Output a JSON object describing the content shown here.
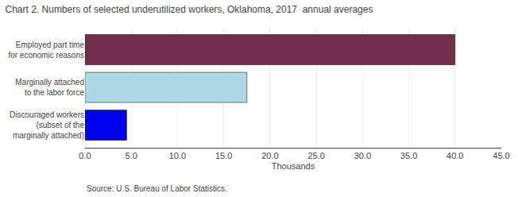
{
  "chart_data": {
    "type": "bar",
    "orientation": "horizontal",
    "title": "Chart 2. Numbers of selected underutilized workers, Oklahoma, 2017  annual averages",
    "categories": [
      "Discouraged workers\n(subset of the\nmarginally attached)",
      "Marginally attached\nto the labor force",
      "Employed part time\nfor economic reasons"
    ],
    "values": [
      4.5,
      17.5,
      40.0
    ],
    "colors": [
      "#0000EE",
      "#ADD8E6",
      "#722F4B"
    ],
    "xlabel": "Thousands",
    "xlim": [
      0,
      45
    ],
    "xticks": [
      {
        "value": 0,
        "label": "0.0"
      },
      {
        "value": 5,
        "label": "5.0"
      },
      {
        "value": 10,
        "label": "10.0"
      },
      {
        "value": 15,
        "label": "15.0"
      },
      {
        "value": 20,
        "label": "20.0"
      },
      {
        "value": 25,
        "label": "25.0"
      },
      {
        "value": 30,
        "label": "30.0"
      },
      {
        "value": 35,
        "label": "35.0"
      },
      {
        "value": 40,
        "label": "40.0"
      },
      {
        "value": 45,
        "label": "45.0"
      }
    ],
    "grid": true,
    "annotations": [
      "Source: U.S. Bureau of Labor Statistics."
    ]
  }
}
